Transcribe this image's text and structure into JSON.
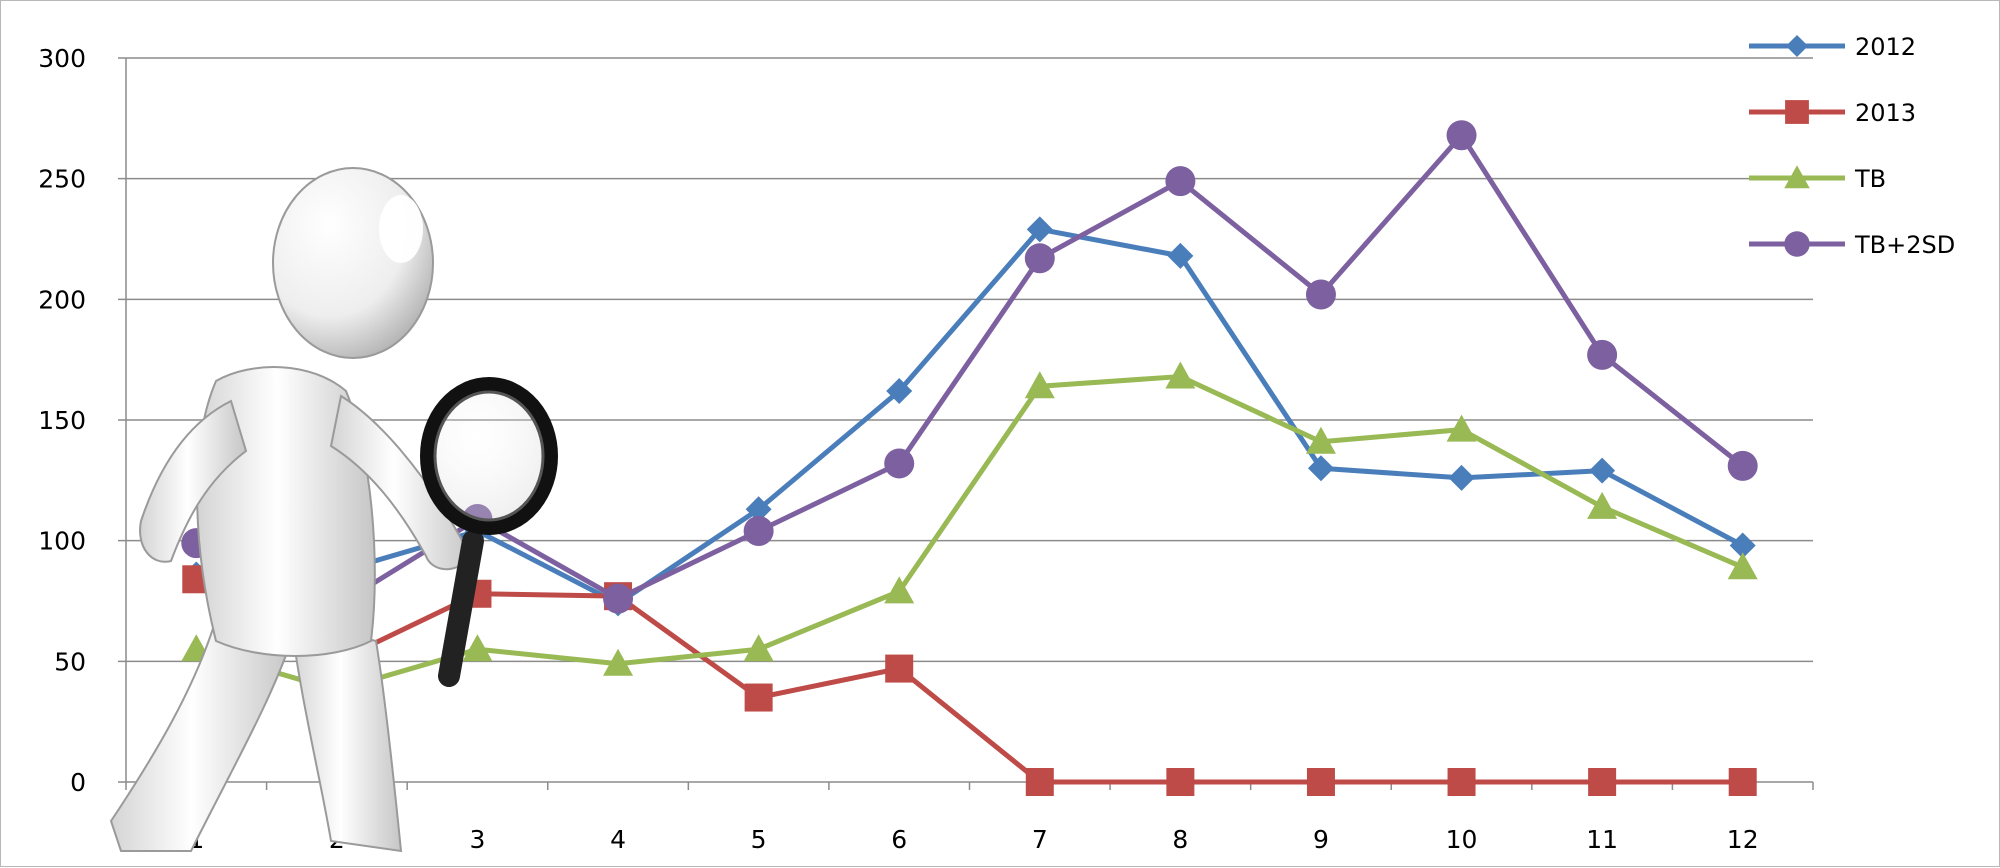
{
  "chart_data": {
    "type": "line",
    "categories": [
      "1",
      "2",
      "3",
      "4",
      "5",
      "6",
      "7",
      "8",
      "9",
      "10",
      "11",
      "12"
    ],
    "ylim": [
      0,
      300
    ],
    "yticks": [
      0,
      50,
      100,
      150,
      200,
      250,
      300
    ],
    "grid": true,
    "legend_position": "top-right",
    "series": [
      {
        "name": "2012",
        "color": "#4a7ebb",
        "marker": "diamond",
        "values": [
          86,
          87,
          104,
          74,
          113,
          162,
          229,
          218,
          130,
          126,
          129,
          98
        ]
      },
      {
        "name": "2013",
        "color": "#be4b48",
        "marker": "square",
        "values": [
          84,
          50,
          78,
          77,
          35,
          47,
          0,
          0,
          0,
          0,
          0,
          0
        ]
      },
      {
        "name": "TB",
        "color": "#98b954",
        "marker": "triangle",
        "values": [
          55,
          38,
          55,
          49,
          55,
          79,
          164,
          168,
          141,
          146,
          114,
          89
        ]
      },
      {
        "name": "TB+2SD",
        "color": "#7d60a0",
        "marker": "circle",
        "values": [
          99,
          73,
          109,
          76,
          104,
          132,
          217,
          249,
          202,
          268,
          177,
          131
        ]
      }
    ]
  },
  "illustration": {
    "name": "figure-with-magnifying-glass"
  }
}
